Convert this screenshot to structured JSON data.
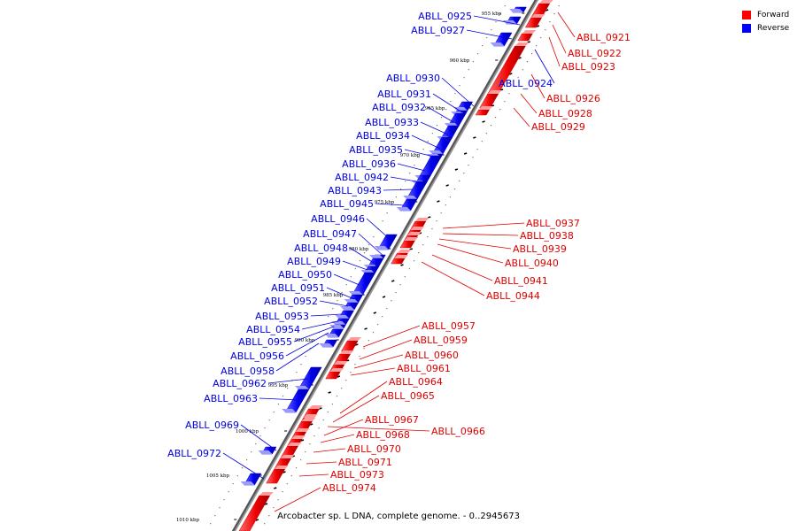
{
  "legend": {
    "forward": {
      "label": "Forward",
      "color": "#ff0000"
    },
    "reverse": {
      "label": "Reverse",
      "color": "#0000ff"
    }
  },
  "caption": "Arcobacter sp. L DNA, complete genome. - 0..2945673",
  "ticks": [
    "955 kbp",
    "960 kbp",
    "965 kbp",
    "970 kbp",
    "975 kbp",
    "980 kbp",
    "985 kbp",
    "990 kbp",
    "995 kbp",
    "1000 kbp",
    "1005 kbp",
    "1010 kbp"
  ],
  "genes": [
    {
      "id": "ABLL_0921",
      "strand": "forward"
    },
    {
      "id": "ABLL_0922",
      "strand": "forward"
    },
    {
      "id": "ABLL_0923",
      "strand": "forward"
    },
    {
      "id": "ABLL_0924",
      "strand": "reverse"
    },
    {
      "id": "ABLL_0925",
      "strand": "reverse"
    },
    {
      "id": "ABLL_0926",
      "strand": "forward"
    },
    {
      "id": "ABLL_0927",
      "strand": "reverse"
    },
    {
      "id": "ABLL_0928",
      "strand": "forward"
    },
    {
      "id": "ABLL_0929",
      "strand": "forward"
    },
    {
      "id": "ABLL_0930",
      "strand": "reverse"
    },
    {
      "id": "ABLL_0931",
      "strand": "reverse"
    },
    {
      "id": "ABLL_0932",
      "strand": "reverse"
    },
    {
      "id": "ABLL_0933",
      "strand": "reverse"
    },
    {
      "id": "ABLL_0934",
      "strand": "reverse"
    },
    {
      "id": "ABLL_0935",
      "strand": "reverse"
    },
    {
      "id": "ABLL_0936",
      "strand": "reverse"
    },
    {
      "id": "ABLL_0937",
      "strand": "forward"
    },
    {
      "id": "ABLL_0938",
      "strand": "forward"
    },
    {
      "id": "ABLL_0939",
      "strand": "forward"
    },
    {
      "id": "ABLL_0940",
      "strand": "forward"
    },
    {
      "id": "ABLL_0941",
      "strand": "forward"
    },
    {
      "id": "ABLL_0942",
      "strand": "reverse"
    },
    {
      "id": "ABLL_0943",
      "strand": "reverse"
    },
    {
      "id": "ABLL_0944",
      "strand": "forward"
    },
    {
      "id": "ABLL_0945",
      "strand": "reverse"
    },
    {
      "id": "ABLL_0946",
      "strand": "reverse"
    },
    {
      "id": "ABLL_0947",
      "strand": "reverse"
    },
    {
      "id": "ABLL_0948",
      "strand": "reverse"
    },
    {
      "id": "ABLL_0949",
      "strand": "reverse"
    },
    {
      "id": "ABLL_0950",
      "strand": "reverse"
    },
    {
      "id": "ABLL_0951",
      "strand": "reverse"
    },
    {
      "id": "ABLL_0952",
      "strand": "reverse"
    },
    {
      "id": "ABLL_0953",
      "strand": "reverse"
    },
    {
      "id": "ABLL_0954",
      "strand": "reverse"
    },
    {
      "id": "ABLL_0955",
      "strand": "reverse"
    },
    {
      "id": "ABLL_0956",
      "strand": "reverse"
    },
    {
      "id": "ABLL_0957",
      "strand": "forward"
    },
    {
      "id": "ABLL_0958",
      "strand": "reverse"
    },
    {
      "id": "ABLL_0959",
      "strand": "forward"
    },
    {
      "id": "ABLL_0960",
      "strand": "forward"
    },
    {
      "id": "ABLL_0961",
      "strand": "forward"
    },
    {
      "id": "ABLL_0962",
      "strand": "reverse"
    },
    {
      "id": "ABLL_0963",
      "strand": "reverse"
    },
    {
      "id": "ABLL_0964",
      "strand": "forward"
    },
    {
      "id": "ABLL_0965",
      "strand": "forward"
    },
    {
      "id": "ABLL_0966",
      "strand": "forward"
    },
    {
      "id": "ABLL_0967",
      "strand": "forward"
    },
    {
      "id": "ABLL_0968",
      "strand": "forward"
    },
    {
      "id": "ABLL_0969",
      "strand": "reverse"
    },
    {
      "id": "ABLL_0970",
      "strand": "forward"
    },
    {
      "id": "ABLL_0971",
      "strand": "forward"
    },
    {
      "id": "ABLL_0972",
      "strand": "reverse"
    },
    {
      "id": "ABLL_0973",
      "strand": "forward"
    },
    {
      "id": "ABLL_0974",
      "strand": "forward"
    }
  ]
}
